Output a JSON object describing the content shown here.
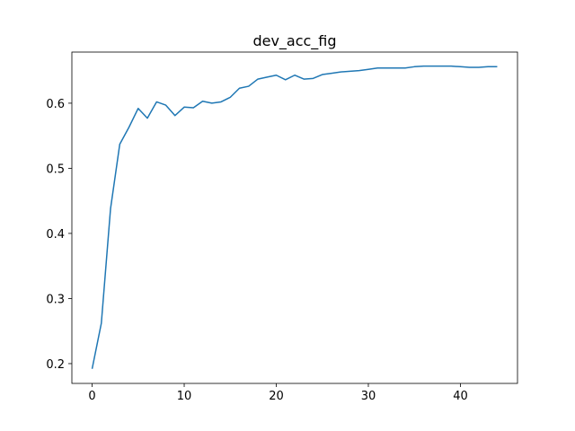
{
  "chart_data": {
    "type": "line",
    "title": "dev_acc_fig",
    "xlabel": "",
    "ylabel": "",
    "xlim": [
      -2.2,
      46.2
    ],
    "ylim": [
      0.1696,
      0.6785
    ],
    "xticks": [
      0,
      10,
      20,
      30,
      40
    ],
    "yticks": [
      0.2,
      0.3,
      0.4,
      0.5,
      0.6
    ],
    "xtick_labels": [
      "0",
      "10",
      "20",
      "30",
      "40"
    ],
    "ytick_labels": [
      "0.2",
      "0.3",
      "0.4",
      "0.5",
      "0.6"
    ],
    "grid": false,
    "legend": "none",
    "series": [
      {
        "color": "#1f77b4",
        "x": [
          0,
          1,
          2,
          3,
          4,
          5,
          6,
          7,
          8,
          9,
          10,
          11,
          12,
          13,
          14,
          15,
          16,
          17,
          18,
          19,
          20,
          21,
          22,
          23,
          24,
          25,
          26,
          27,
          28,
          29,
          30,
          31,
          32,
          33,
          34,
          35,
          36,
          37,
          38,
          39,
          40,
          41,
          42,
          43,
          44
        ],
        "y": [
          0.192,
          0.262,
          0.438,
          0.537,
          0.563,
          0.592,
          0.577,
          0.602,
          0.597,
          0.581,
          0.594,
          0.593,
          0.603,
          0.6,
          0.602,
          0.609,
          0.623,
          0.626,
          0.637,
          0.64,
          0.643,
          0.636,
          0.643,
          0.637,
          0.638,
          0.644,
          0.646,
          0.648,
          0.649,
          0.65,
          0.652,
          0.654,
          0.654,
          0.654,
          0.654,
          0.656,
          0.657,
          0.657,
          0.657,
          0.657,
          0.656,
          0.655,
          0.655,
          0.656,
          0.656
        ]
      }
    ]
  }
}
